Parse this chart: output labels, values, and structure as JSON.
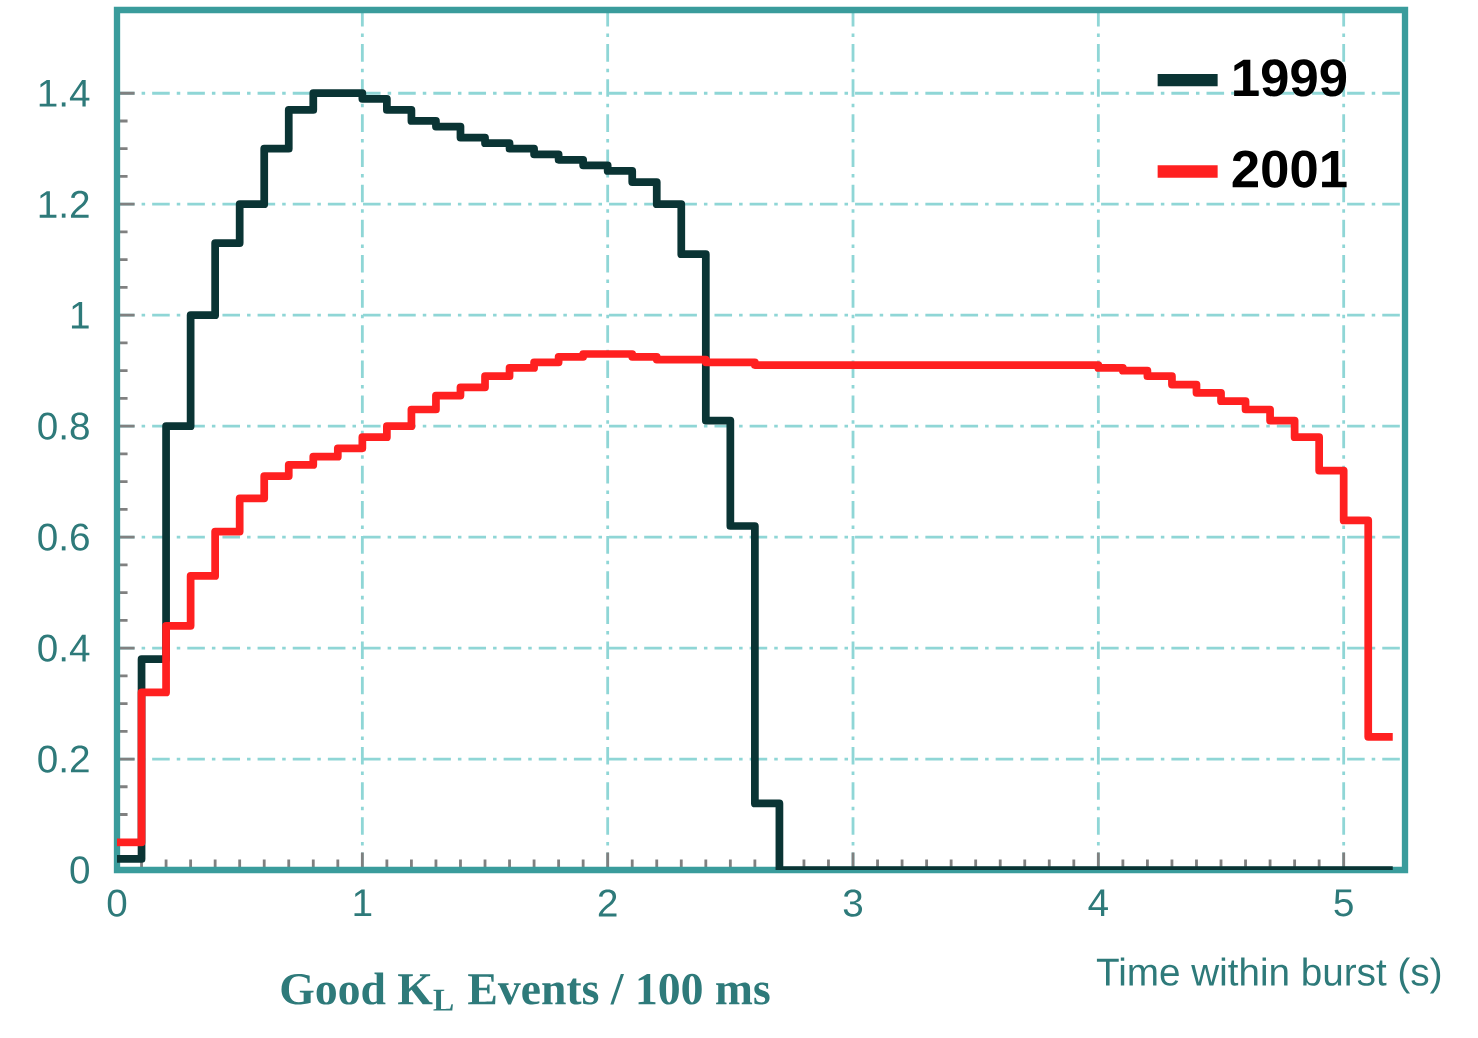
{
  "chart_data": {
    "type": "histogram",
    "xlabel": "Time within burst (s)",
    "annotations": [
      "Good K$_{L}$ Events / 100 ms"
    ],
    "bins": [
      0,
      0.1,
      0.2,
      0.3,
      0.4,
      0.5,
      0.6,
      0.7,
      0.8,
      0.9,
      1.0,
      1.1,
      1.2,
      1.3,
      1.4,
      1.5,
      1.6,
      1.7,
      1.8,
      1.9,
      2.0,
      2.1,
      2.2,
      2.3,
      2.4,
      2.5,
      2.6,
      2.7,
      2.8,
      2.9,
      3.0,
      3.1,
      3.2,
      3.3,
      3.4,
      3.5,
      3.6,
      3.7,
      3.8,
      3.9,
      4.0,
      4.1,
      4.2,
      4.3,
      4.4,
      4.5,
      4.6,
      4.7,
      4.8,
      4.9,
      5.0,
      5.1,
      5.2
    ],
    "series": [
      {
        "name": "1999",
        "color": "#0a3434",
        "values": [
          0.02,
          0.38,
          0.8,
          1.0,
          1.13,
          1.2,
          1.3,
          1.37,
          1.4,
          1.4,
          1.39,
          1.37,
          1.35,
          1.34,
          1.32,
          1.31,
          1.3,
          1.29,
          1.28,
          1.27,
          1.26,
          1.24,
          1.2,
          1.11,
          0.81,
          0.62,
          0.12,
          0,
          0,
          0,
          0,
          0,
          0,
          0,
          0,
          0,
          0,
          0,
          0,
          0,
          0,
          0,
          0,
          0,
          0,
          0,
          0,
          0,
          0,
          0,
          0,
          0
        ]
      },
      {
        "name": "2001",
        "color": "#ff2020",
        "values": [
          0.05,
          0.32,
          0.44,
          0.53,
          0.61,
          0.67,
          0.71,
          0.73,
          0.745,
          0.76,
          0.78,
          0.8,
          0.83,
          0.855,
          0.87,
          0.89,
          0.905,
          0.915,
          0.925,
          0.93,
          0.93,
          0.925,
          0.92,
          0.92,
          0.915,
          0.915,
          0.91,
          0.91,
          0.91,
          0.91,
          0.91,
          0.91,
          0.91,
          0.91,
          0.91,
          0.91,
          0.91,
          0.91,
          0.91,
          0.91,
          0.905,
          0.9,
          0.89,
          0.875,
          0.86,
          0.845,
          0.83,
          0.81,
          0.78,
          0.72,
          0.63,
          0.24
        ]
      }
    ],
    "xlim": [
      0,
      5.25
    ],
    "ylim": [
      0,
      1.55
    ],
    "xticks": [
      0,
      1,
      2,
      3,
      4,
      5
    ],
    "yticks": [
      0,
      0.2,
      0.4,
      0.6,
      0.8,
      1,
      1.2,
      1.4
    ],
    "grid": true,
    "legend": "top right"
  }
}
